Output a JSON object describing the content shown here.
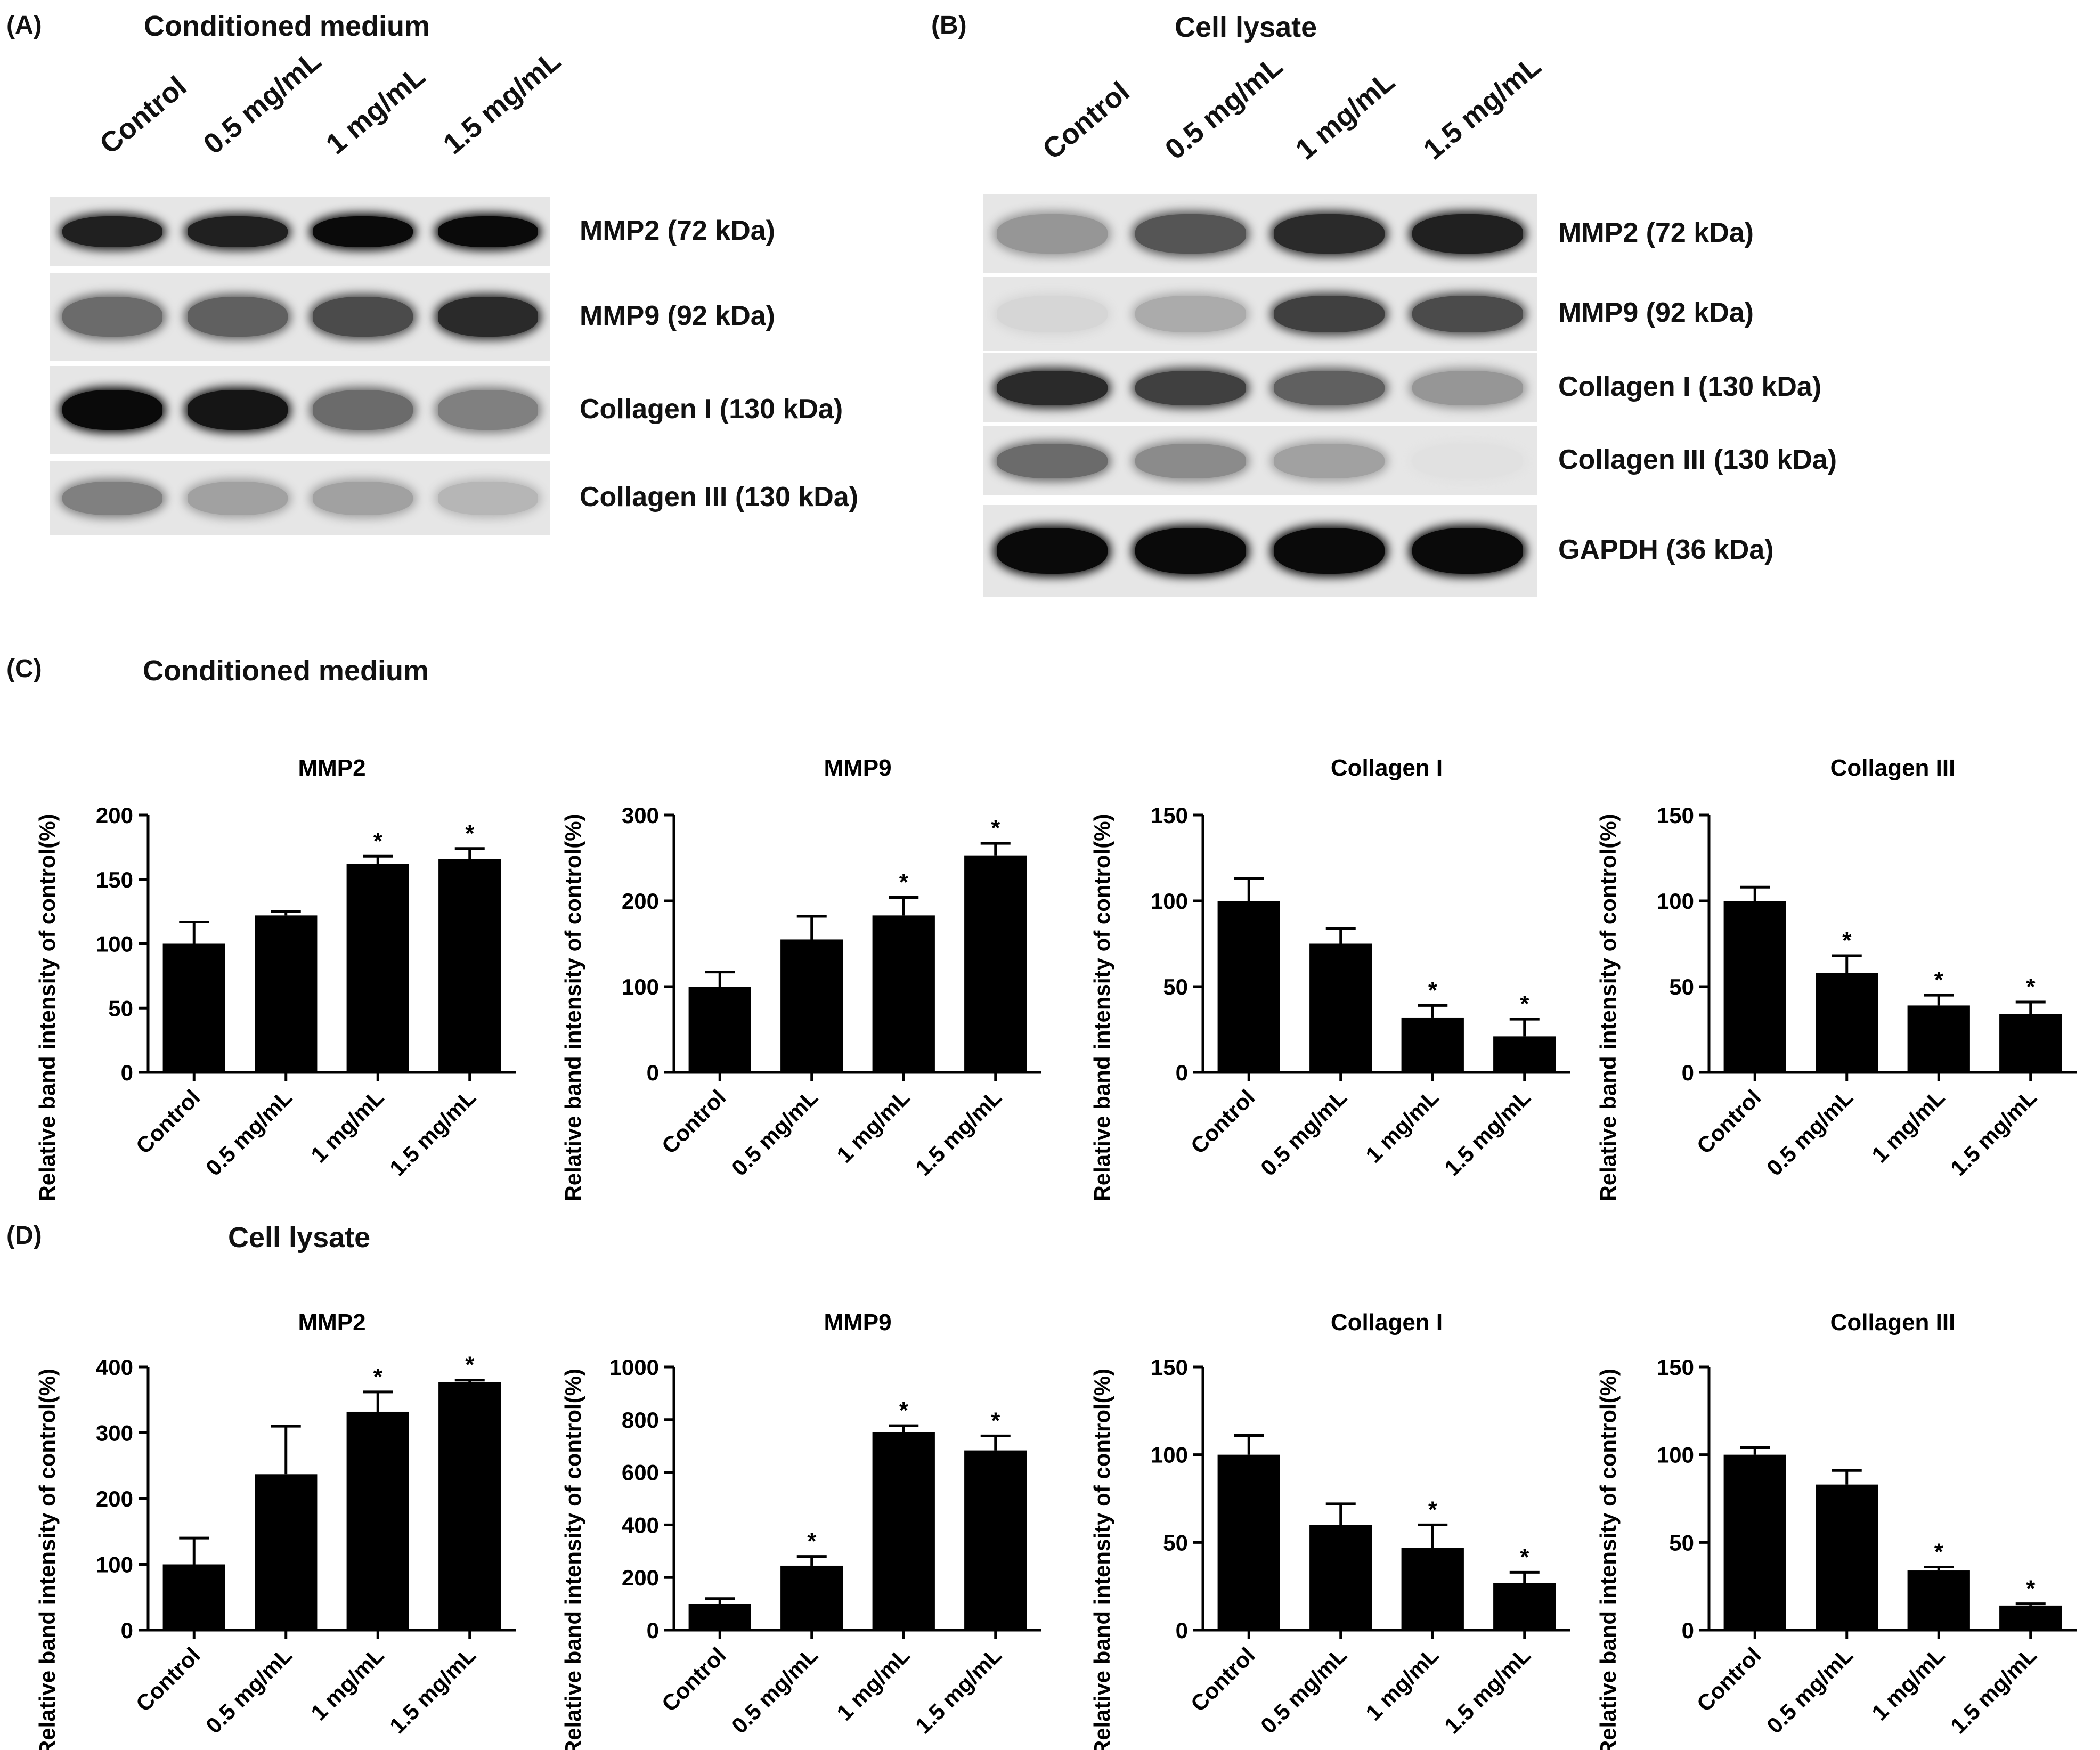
{
  "panels": {
    "A": {
      "letter": "(A)",
      "title": "Conditioned medium",
      "lanes": [
        "Control",
        "0.5 mg/mL",
        "1 mg/mL",
        "1.5 mg/mL"
      ],
      "blots": [
        "MMP2 (72 kDa)",
        "MMP9 (92 kDa)",
        "Collagen I (130 kDa)",
        "Collagen III (130 kDa)"
      ]
    },
    "B": {
      "letter": "(B)",
      "title": "Cell lysate",
      "lanes": [
        "Control",
        "0.5 mg/mL",
        "1 mg/mL",
        "1.5 mg/mL"
      ],
      "blots": [
        "MMP2 (72 kDa)",
        "MMP9 (92 kDa)",
        "Collagen I (130 kDa)",
        "Collagen III (130 kDa)",
        "GAPDH (36 kDa)"
      ]
    },
    "C": {
      "letter": "(C)",
      "title": "Conditioned medium"
    },
    "D": {
      "letter": "(D)",
      "title": "Cell lysate"
    }
  },
  "blot_intensity": {
    "A": [
      [
        0.9,
        0.9,
        1.0,
        1.0
      ],
      [
        0.55,
        0.6,
        0.7,
        0.85
      ],
      [
        1.0,
        0.95,
        0.55,
        0.45
      ],
      [
        0.45,
        0.3,
        0.3,
        0.2
      ]
    ],
    "B": [
      [
        0.35,
        0.65,
        0.85,
        0.9
      ],
      [
        0.05,
        0.25,
        0.75,
        0.7
      ],
      [
        0.85,
        0.75,
        0.6,
        0.35
      ],
      [
        0.55,
        0.4,
        0.3,
        0.0
      ],
      [
        1.0,
        1.0,
        1.0,
        1.0
      ]
    ]
  },
  "chart_data": [
    {
      "type": "bar",
      "title": "MMP2",
      "ylabel": "Relative band intensity of control(%)",
      "categories": [
        "Control",
        "0.5 mg/mL",
        "1 mg/mL",
        "1.5 mg/mL"
      ],
      "values": [
        100,
        122,
        162,
        166
      ],
      "errors": [
        17,
        3,
        6,
        8
      ],
      "significant": [
        false,
        false,
        true,
        true
      ],
      "ylim": [
        0,
        200
      ],
      "yticks": [
        0,
        50,
        100,
        150,
        200
      ]
    },
    {
      "type": "bar",
      "title": "MMP9",
      "ylabel": "Relative band intensity of control(%)",
      "categories": [
        "Control",
        "0.5 mg/mL",
        "1 mg/mL",
        "1.5 mg/mL"
      ],
      "values": [
        100,
        155,
        183,
        253
      ],
      "errors": [
        17,
        27,
        21,
        14
      ],
      "significant": [
        false,
        false,
        true,
        true
      ],
      "ylim": [
        0,
        300
      ],
      "yticks": [
        0,
        100,
        200,
        300
      ]
    },
    {
      "type": "bar",
      "title": "Collagen I",
      "ylabel": "Relative band intensity of control(%)",
      "categories": [
        "Control",
        "0.5 mg/mL",
        "1 mg/mL",
        "1.5 mg/mL"
      ],
      "values": [
        100,
        75,
        32,
        21
      ],
      "errors": [
        13,
        9,
        7,
        10
      ],
      "significant": [
        false,
        false,
        true,
        true
      ],
      "ylim": [
        0,
        150
      ],
      "yticks": [
        0,
        50,
        100,
        150
      ]
    },
    {
      "type": "bar",
      "title": "Collagen III",
      "ylabel": "Relative band intensity of control(%)",
      "categories": [
        "Control",
        "0.5 mg/mL",
        "1 mg/mL",
        "1.5 mg/mL"
      ],
      "values": [
        100,
        58,
        39,
        34
      ],
      "errors": [
        8,
        10,
        6,
        7
      ],
      "significant": [
        false,
        true,
        true,
        true
      ],
      "ylim": [
        0,
        150
      ],
      "yticks": [
        0,
        50,
        100,
        150
      ]
    },
    {
      "type": "bar",
      "title": "MMP2",
      "ylabel": "Relative band intensity of control(%)",
      "categories": [
        "Control",
        "0.5 mg/mL",
        "1 mg/mL",
        "1.5 mg/mL"
      ],
      "values": [
        100,
        237,
        332,
        377
      ],
      "errors": [
        40,
        73,
        30,
        3
      ],
      "significant": [
        false,
        false,
        true,
        true
      ],
      "ylim": [
        0,
        400
      ],
      "yticks": [
        0,
        100,
        200,
        300,
        400
      ]
    },
    {
      "type": "bar",
      "title": "MMP9",
      "ylabel": "Relative band intensity of control(%)",
      "categories": [
        "Control",
        "0.5 mg/mL",
        "1 mg/mL",
        "1.5 mg/mL"
      ],
      "values": [
        100,
        245,
        752,
        683
      ],
      "errors": [
        20,
        35,
        25,
        55
      ],
      "significant": [
        false,
        true,
        true,
        true
      ],
      "ylim": [
        0,
        1000
      ],
      "yticks": [
        0,
        200,
        400,
        600,
        800,
        1000
      ]
    },
    {
      "type": "bar",
      "title": "Collagen I",
      "ylabel": "Relative band intensity of control(%)",
      "categories": [
        "Control",
        "0.5 mg/mL",
        "1 mg/mL",
        "1.5 mg/mL"
      ],
      "values": [
        100,
        60,
        47,
        27
      ],
      "errors": [
        11,
        12,
        13,
        6
      ],
      "significant": [
        false,
        false,
        true,
        true
      ],
      "ylim": [
        0,
        150
      ],
      "yticks": [
        0,
        50,
        100,
        150
      ]
    },
    {
      "type": "bar",
      "title": "Collagen III",
      "ylabel": "Relative band intensity of control(%)",
      "categories": [
        "Control",
        "0.5 mg/mL",
        "1 mg/mL",
        "1.5 mg/mL"
      ],
      "values": [
        100,
        83,
        34,
        14
      ],
      "errors": [
        4,
        8,
        2,
        1
      ],
      "significant": [
        false,
        false,
        true,
        true
      ],
      "ylim": [
        0,
        150
      ],
      "yticks": [
        0,
        50,
        100,
        150
      ]
    }
  ]
}
